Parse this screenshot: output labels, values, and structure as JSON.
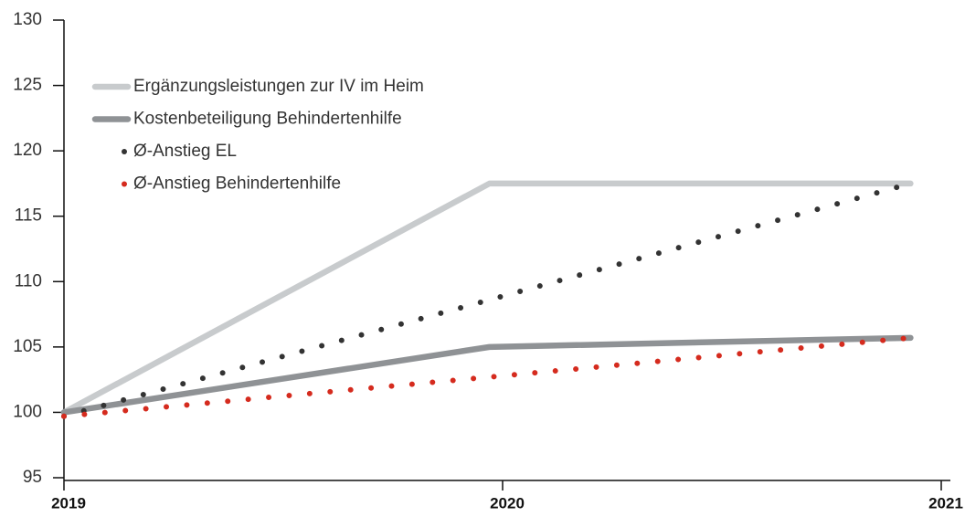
{
  "chart_data": {
    "type": "line",
    "x": [
      2019,
      2019.97,
      2020.93
    ],
    "series": [
      {
        "name": "Ergänzungsleistungen zur IV im Heim",
        "color": "#c8cbcd",
        "style": "solid",
        "values": [
          100,
          117.5,
          117.5
        ]
      },
      {
        "name": "Kostenbeteiligung Behindertenhilfe",
        "color": "#8f9295",
        "style": "solid",
        "values": [
          100,
          105,
          105.7
        ]
      },
      {
        "name": "Ø-Anstieg EL",
        "color": "#333333",
        "style": "dotted",
        "values": [
          99.7,
          108.6,
          117.5
        ]
      },
      {
        "name": "Ø-Anstieg Behindertenhilfe",
        "color": "#d52b1e",
        "style": "dotted",
        "values": [
          99.7,
          102.7,
          105.7
        ]
      }
    ],
    "xlim": [
      2019,
      2021
    ],
    "xticks": [
      2019,
      2020,
      2021
    ],
    "ylim": [
      95,
      130
    ],
    "yticks": [
      95,
      100,
      105,
      110,
      115,
      120,
      125,
      130
    ],
    "legend": "upper left"
  }
}
